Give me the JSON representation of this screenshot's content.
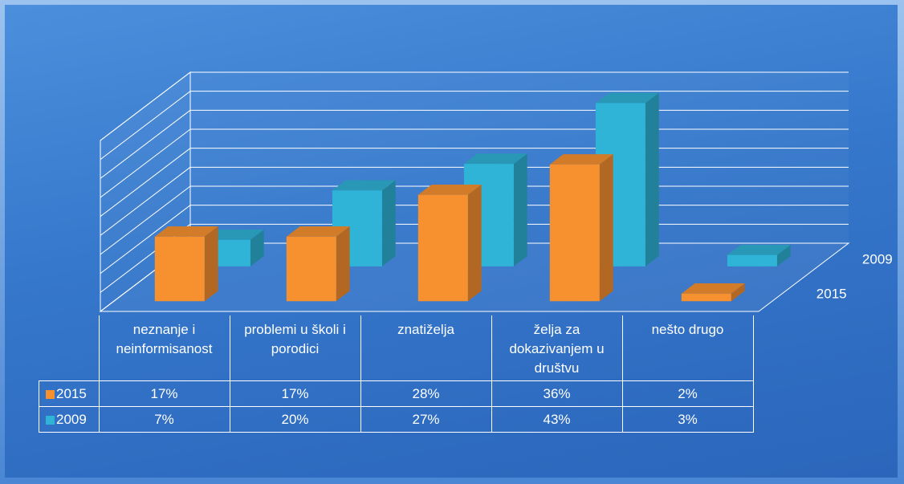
{
  "chart_data": {
    "type": "bar3d",
    "categories": [
      "neznanje i neinformisanost",
      "problemi u školi i porodici",
      "znatiželja",
      "želja za dokazivanjem u društvu",
      "nešto drugo"
    ],
    "series": [
      {
        "name": "2015",
        "color": "#f7912f",
        "values": [
          17,
          17,
          28,
          36,
          2
        ],
        "value_labels": [
          "17%",
          "17%",
          "28%",
          "36%",
          "2%"
        ]
      },
      {
        "name": "2009",
        "color": "#2fb3d6",
        "values": [
          7,
          20,
          27,
          43,
          3
        ],
        "value_labels": [
          "7%",
          "20%",
          "27%",
          "43%",
          "3%"
        ]
      }
    ],
    "ylim": [
      0,
      45
    ],
    "yticks": [
      0,
      5,
      10,
      15,
      20,
      25,
      30,
      35,
      40,
      45
    ],
    "grid": true
  }
}
